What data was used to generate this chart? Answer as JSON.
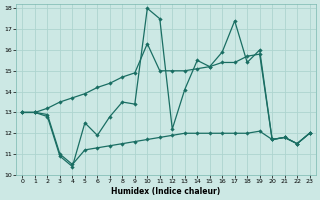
{
  "xlabel": "Humidex (Indice chaleur)",
  "xlim": [
    -0.5,
    23.5
  ],
  "ylim": [
    10,
    18.2
  ],
  "yticks": [
    10,
    11,
    12,
    13,
    14,
    15,
    16,
    17,
    18
  ],
  "xticks": [
    0,
    1,
    2,
    3,
    4,
    5,
    6,
    7,
    8,
    9,
    10,
    11,
    12,
    13,
    14,
    15,
    16,
    17,
    18,
    19,
    20,
    21,
    22,
    23
  ],
  "bg_color": "#cce8e4",
  "grid_color": "#aed4cf",
  "line_color": "#1a6e63",
  "line1_x": [
    0,
    1,
    2,
    3,
    4,
    5,
    6,
    7,
    8,
    9,
    10,
    11,
    12,
    13,
    14,
    15,
    16,
    17,
    18,
    19,
    20,
    21,
    22,
    23
  ],
  "line1_y": [
    13.0,
    13.0,
    12.8,
    10.9,
    10.4,
    12.5,
    11.9,
    12.8,
    13.5,
    13.4,
    18.0,
    17.5,
    12.2,
    14.1,
    15.5,
    15.2,
    15.9,
    17.4,
    15.4,
    16.0,
    11.7,
    11.8,
    11.5,
    12.0
  ],
  "line2_x": [
    0,
    1,
    2,
    3,
    4,
    5,
    6,
    7,
    8,
    9,
    10,
    11,
    12,
    13,
    14,
    15,
    16,
    17,
    18,
    19,
    20,
    21,
    22,
    23
  ],
  "line2_y": [
    13.0,
    13.0,
    13.2,
    13.5,
    13.7,
    13.9,
    14.2,
    14.4,
    14.7,
    14.9,
    16.3,
    15.0,
    15.0,
    15.0,
    15.1,
    15.2,
    15.4,
    15.4,
    15.7,
    15.8,
    11.7,
    11.8,
    11.5,
    12.0
  ],
  "line3_x": [
    0,
    1,
    2,
    3,
    4,
    5,
    6,
    7,
    8,
    9,
    10,
    11,
    12,
    13,
    14,
    15,
    16,
    17,
    18,
    19,
    20,
    21,
    22,
    23
  ],
  "line3_y": [
    13.0,
    13.0,
    12.9,
    11.0,
    10.5,
    11.2,
    11.3,
    11.4,
    11.5,
    11.6,
    11.7,
    11.8,
    11.9,
    12.0,
    12.0,
    12.0,
    12.0,
    12.0,
    12.0,
    12.1,
    11.7,
    11.8,
    11.5,
    12.0
  ]
}
